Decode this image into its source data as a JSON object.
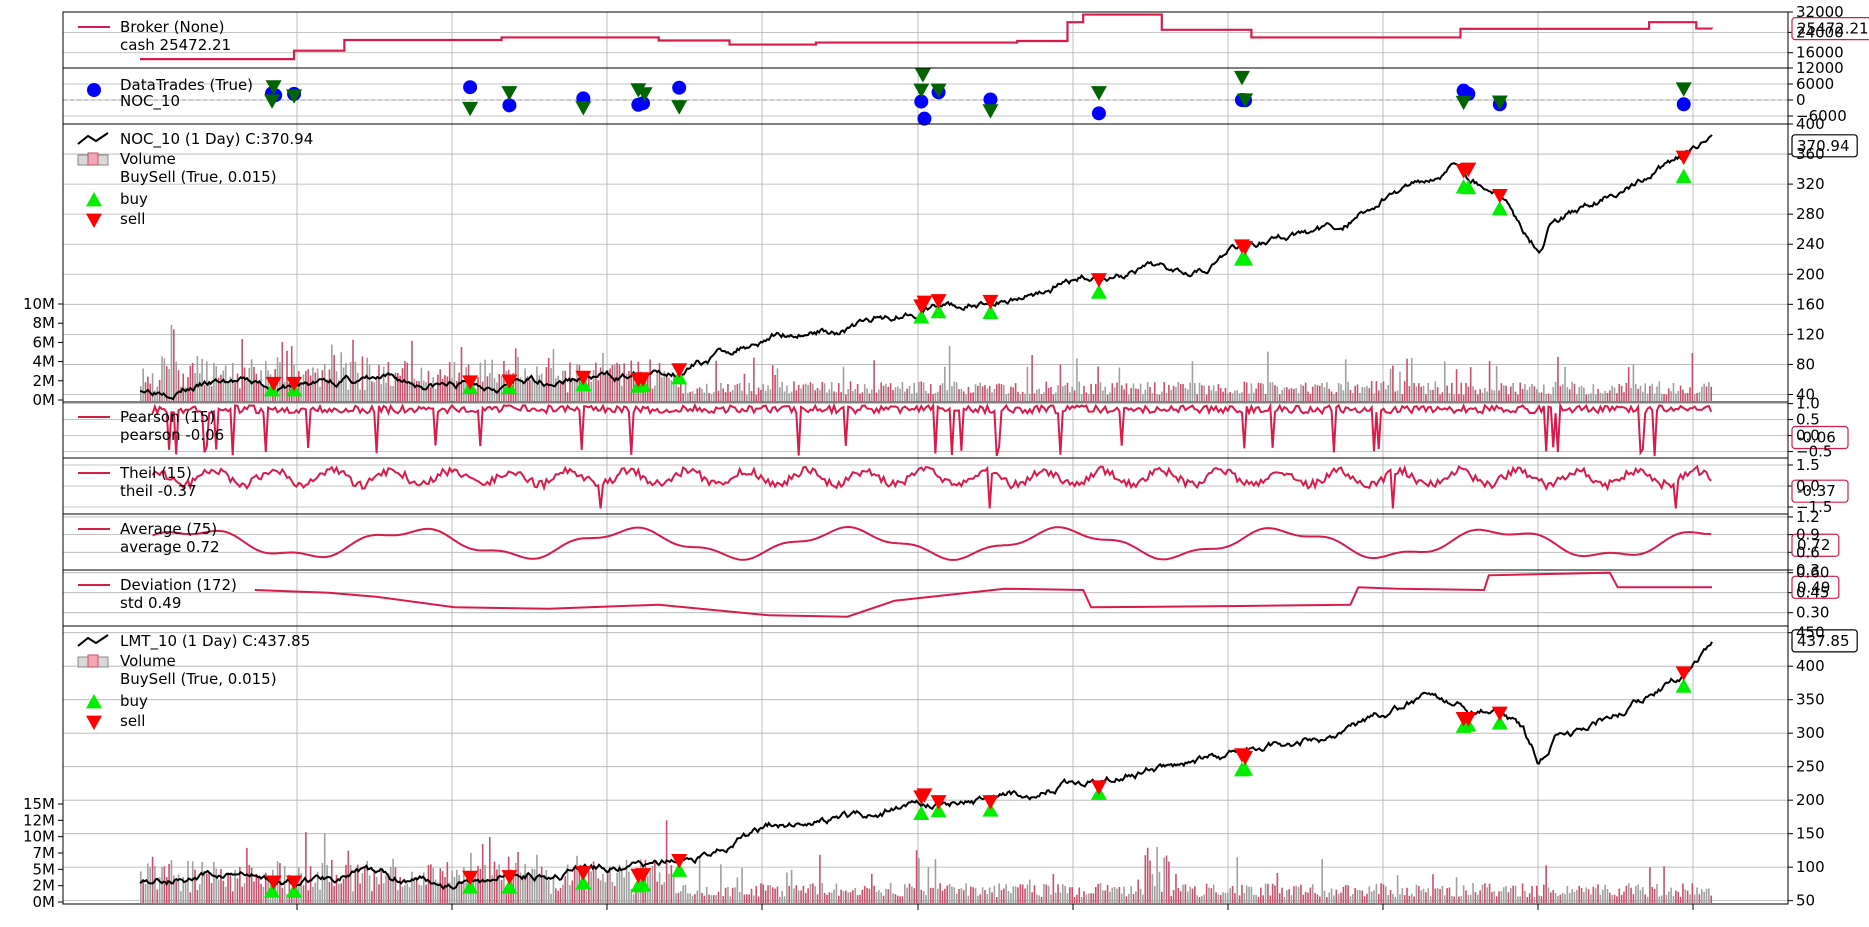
{
  "chart_data": {
    "type": "line",
    "colors": {
      "indicator": "#d81b4a",
      "price": "#000000",
      "buy_marker": "#00ee00",
      "sell_marker": "#ff0000",
      "trade_point": "#0000ff",
      "trade_triangle": "#006400",
      "volume_up": "#a0a0a0",
      "volume_down": "#c8506a"
    },
    "x_index": {
      "min": 0,
      "max": 1000
    },
    "panels": [
      {
        "id": "broker",
        "legend": [
          {
            "marker": "line",
            "label": "Broker (None)"
          },
          {
            "marker": "none",
            "label": "cash 25472.21"
          }
        ],
        "ylim": [
          10000,
          32000
        ],
        "ticks_right": [
          "32000",
          "24000",
          "16000"
        ],
        "last_value": "25472.21",
        "series": [
          {
            "name": "cash",
            "step": true,
            "x": [
              0,
              90,
              98,
              130,
              152,
              230,
              296,
              330,
              375,
              400,
              430,
              500,
              558,
              590,
              600,
              650,
              700,
              707,
              820,
              840,
              950,
              960,
              990,
              1000
            ],
            "y": [
              13500,
              13500,
              16800,
              21000,
              21000,
              22000,
              22000,
              20800,
              19200,
              19200,
              20000,
              20000,
              20600,
              28000,
              31000,
              25000,
              25000,
              22000,
              22000,
              25400,
              25400,
              28000,
              25500,
              25472
            ]
          }
        ]
      },
      {
        "id": "trades",
        "legend": [
          {
            "marker": "dot",
            "label": "DataTrades (True)"
          },
          {
            "marker": "none",
            "label": "NOC_10"
          }
        ],
        "ylim": [
          -9000,
          12000
        ],
        "ticks_right": [
          "12000",
          "6000",
          "0",
          "−6000"
        ],
        "points": [
          {
            "x": 84,
            "y": 2500,
            "kind": "dot"
          },
          {
            "x": 86,
            "y": 1800,
            "kind": "dot"
          },
          {
            "x": 98,
            "y": 2300,
            "kind": "dot"
          },
          {
            "x": 210,
            "y": 4800,
            "kind": "dot"
          },
          {
            "x": 235,
            "y": -2000,
            "kind": "dot"
          },
          {
            "x": 282,
            "y": 600,
            "kind": "dot"
          },
          {
            "x": 317,
            "y": -1800,
            "kind": "dot"
          },
          {
            "x": 320,
            "y": -1200,
            "kind": "dot"
          },
          {
            "x": 343,
            "y": 4600,
            "kind": "dot"
          },
          {
            "x": 497,
            "y": -600,
            "kind": "dot"
          },
          {
            "x": 499,
            "y": -7000,
            "kind": "dot"
          },
          {
            "x": 508,
            "y": 2900,
            "kind": "dot"
          },
          {
            "x": 541,
            "y": 200,
            "kind": "dot"
          },
          {
            "x": 610,
            "y": -5000,
            "kind": "dot"
          },
          {
            "x": 701,
            "y": 0,
            "kind": "dot"
          },
          {
            "x": 703,
            "y": -100,
            "kind": "dot"
          },
          {
            "x": 842,
            "y": 3500,
            "kind": "dot"
          },
          {
            "x": 845,
            "y": 2300,
            "kind": "dot"
          },
          {
            "x": 865,
            "y": -1600,
            "kind": "dot"
          },
          {
            "x": 982,
            "y": -1600,
            "kind": "dot"
          },
          {
            "x": 85,
            "y": 5000,
            "kind": "tri-down"
          },
          {
            "x": 84,
            "y": -300,
            "kind": "tri-down"
          },
          {
            "x": 98,
            "y": 1600,
            "kind": "tri-down"
          },
          {
            "x": 210,
            "y": -3100,
            "kind": "tri-down"
          },
          {
            "x": 235,
            "y": 2800,
            "kind": "tri-down"
          },
          {
            "x": 282,
            "y": -2800,
            "kind": "tri-down"
          },
          {
            "x": 317,
            "y": 3900,
            "kind": "tri-down"
          },
          {
            "x": 321,
            "y": 2400,
            "kind": "tri-down"
          },
          {
            "x": 343,
            "y": -2500,
            "kind": "tri-down"
          },
          {
            "x": 497,
            "y": 3800,
            "kind": "tri-down"
          },
          {
            "x": 498,
            "y": 9500,
            "kind": "tri-down"
          },
          {
            "x": 508,
            "y": 3800,
            "kind": "tri-down"
          },
          {
            "x": 541,
            "y": -4000,
            "kind": "tri-down"
          },
          {
            "x": 610,
            "y": 2800,
            "kind": "tri-down"
          },
          {
            "x": 701,
            "y": 8500,
            "kind": "tri-down"
          },
          {
            "x": 703,
            "y": 100,
            "kind": "tri-down"
          },
          {
            "x": 842,
            "y": -800,
            "kind": "tri-down"
          },
          {
            "x": 865,
            "y": -700,
            "kind": "tri-down"
          },
          {
            "x": 982,
            "y": 4200,
            "kind": "tri-down"
          }
        ]
      },
      {
        "id": "noc",
        "legend": [
          {
            "marker": "line",
            "label": "NOC_10 (1 Day) C:370.94"
          },
          {
            "marker": "box",
            "label": "Volume"
          },
          {
            "marker": "none",
            "label": "BuySell (True, 0.015)"
          },
          {
            "marker": "tri-up",
            "label": "buy"
          },
          {
            "marker": "tri-down",
            "label": "sell"
          }
        ],
        "ylim": [
          30,
          400
        ],
        "ticks_right": [
          "400",
          "360",
          "320",
          "280",
          "240",
          "200",
          "160",
          "120",
          "80",
          "40"
        ],
        "ticks_left": [
          "10M",
          "8M",
          "6M",
          "4M",
          "2M",
          "0M"
        ],
        "last_value": "370.94",
        "series": [
          {
            "name": "close",
            "anchors_x": [
              0,
              60,
              90,
              130,
              200,
              260,
              330,
              350,
              400,
              450,
              497,
              540,
              600,
              680,
              700,
              760,
              790,
              820,
              840,
              846,
              865,
              880,
              890,
              900,
              930,
              980,
              1000
            ],
            "anchors_y": [
              48,
              56,
              48,
              60,
              52,
              60,
              66,
              76,
              120,
              130,
              155,
              160,
              195,
              215,
              240,
              260,
              300,
              330,
              355,
              330,
              310,
              260,
              235,
              280,
              300,
              350,
              372
            ]
          }
        ],
        "buy": [
          [
            84,
            46
          ],
          [
            98,
            46
          ],
          [
            210,
            49
          ],
          [
            235,
            49
          ],
          [
            282,
            53
          ],
          [
            317,
            51
          ],
          [
            320,
            52
          ],
          [
            343,
            62
          ],
          [
            497,
            143
          ],
          [
            508,
            150
          ],
          [
            541,
            149
          ],
          [
            610,
            176
          ],
          [
            701,
            220
          ],
          [
            703,
            220
          ],
          [
            842,
            316
          ],
          [
            845,
            315
          ],
          [
            865,
            287
          ],
          [
            982,
            330
          ]
        ],
        "sell": [
          [
            85,
            55
          ],
          [
            98,
            55
          ],
          [
            210,
            57
          ],
          [
            235,
            58
          ],
          [
            282,
            63
          ],
          [
            317,
            60
          ],
          [
            320,
            61
          ],
          [
            343,
            73
          ],
          [
            497,
            158
          ],
          [
            499,
            163
          ],
          [
            508,
            165
          ],
          [
            541,
            164
          ],
          [
            610,
            193
          ],
          [
            701,
            238
          ],
          [
            703,
            236
          ],
          [
            842,
            338
          ],
          [
            845,
            340
          ],
          [
            865,
            305
          ],
          [
            982,
            356
          ]
        ]
      },
      {
        "id": "pearson",
        "legend": [
          {
            "marker": "line",
            "label": "Pearson (15)"
          },
          {
            "marker": "none",
            "label": "pearson -0.06"
          }
        ],
        "ylim": [
          -0.7,
          1.05
        ],
        "ticks_right": [
          "1.0",
          "0.5",
          "0.0",
          "−0.5"
        ],
        "last_value": "-0.06"
      },
      {
        "id": "theil",
        "legend": [
          {
            "marker": "line",
            "label": "Theil (15)"
          },
          {
            "marker": "none",
            "label": "theil -0.37"
          }
        ],
        "ylim": [
          -2.0,
          2.0
        ],
        "ticks_right": [
          "1.5",
          "0.0",
          "−1.5"
        ],
        "last_value": "-0.37"
      },
      {
        "id": "average",
        "legend": [
          {
            "marker": "line",
            "label": "Average (75)"
          },
          {
            "marker": "none",
            "label": "average 0.72"
          }
        ],
        "ylim": [
          0.3,
          1.25
        ],
        "ticks_right": [
          "1.2",
          "0.9",
          "0.6",
          "0.3"
        ],
        "last_value": "0.72"
      },
      {
        "id": "deviation",
        "legend": [
          {
            "marker": "line",
            "label": "Deviation (172)"
          },
          {
            "marker": "none",
            "label": "std 0.49"
          }
        ],
        "ylim": [
          0.2,
          0.62
        ],
        "ticks_right": [
          "0.60",
          "0.45",
          "0.30"
        ],
        "last_value": "0.49",
        "series": [
          {
            "name": "std",
            "step": true,
            "x": [
              73,
              120,
              150,
              200,
              260,
              330,
              400,
              450,
              480,
              550,
              600,
              605,
              700,
              770,
              775,
              800,
              855,
              858,
              935,
              940,
              1000
            ],
            "y": [
              0.47,
              0.45,
              0.42,
              0.34,
              0.33,
              0.36,
              0.28,
              0.27,
              0.39,
              0.48,
              0.47,
              0.34,
              0.35,
              0.36,
              0.49,
              0.48,
              0.47,
              0.58,
              0.6,
              0.49,
              0.49
            ]
          }
        ]
      },
      {
        "id": "lmt",
        "legend": [
          {
            "marker": "line",
            "label": "LMT_10 (1 Day) C:437.85"
          },
          {
            "marker": "box",
            "label": "Volume"
          },
          {
            "marker": "none",
            "label": "BuySell (True, 0.015)"
          },
          {
            "marker": "tri-up",
            "label": "buy"
          },
          {
            "marker": "tri-down",
            "label": "sell"
          }
        ],
        "ylim": [
          45,
          460
        ],
        "ticks_right": [
          "450",
          "400",
          "350",
          "300",
          "250",
          "200",
          "150",
          "100",
          "50"
        ],
        "ticks_left": [
          "15M",
          "12M",
          "10M",
          "7M",
          "5M",
          "2M",
          "0M"
        ],
        "last_value": "437.85",
        "series": [
          {
            "name": "close",
            "anchors_x": [
              0,
              60,
              90,
              130,
              200,
              260,
              330,
              350,
              400,
              450,
              497,
              540,
              600,
              680,
              700,
              760,
              790,
              820,
              840,
              846,
              865,
              880,
              890,
              900,
              930,
              980,
              1000
            ],
            "anchors_y": [
              80,
              90,
              75,
              90,
              80,
              95,
              100,
              110,
              160,
              175,
              195,
              200,
              230,
              260,
              270,
              300,
              330,
              355,
              340,
              325,
              335,
              300,
              255,
              290,
              320,
              380,
              438
            ]
          }
        ],
        "buy": [
          [
            84,
            64
          ],
          [
            98,
            64
          ],
          [
            210,
            70
          ],
          [
            235,
            70
          ],
          [
            282,
            76
          ],
          [
            317,
            72
          ],
          [
            320,
            73
          ],
          [
            343,
            95
          ],
          [
            497,
            180
          ],
          [
            508,
            184
          ],
          [
            541,
            185
          ],
          [
            610,
            210
          ],
          [
            701,
            245
          ],
          [
            703,
            246
          ],
          [
            842,
            310
          ],
          [
            845,
            312
          ],
          [
            865,
            315
          ],
          [
            982,
            370
          ]
        ],
        "sell": [
          [
            85,
            78
          ],
          [
            98,
            78
          ],
          [
            210,
            85
          ],
          [
            235,
            86
          ],
          [
            282,
            92
          ],
          [
            317,
            88
          ],
          [
            320,
            89
          ],
          [
            343,
            110
          ],
          [
            497,
            205
          ],
          [
            499,
            208
          ],
          [
            508,
            198
          ],
          [
            541,
            198
          ],
          [
            610,
            220
          ],
          [
            701,
            268
          ],
          [
            703,
            264
          ],
          [
            842,
            322
          ],
          [
            845,
            322
          ],
          [
            865,
            330
          ],
          [
            982,
            390
          ]
        ]
      }
    ]
  }
}
